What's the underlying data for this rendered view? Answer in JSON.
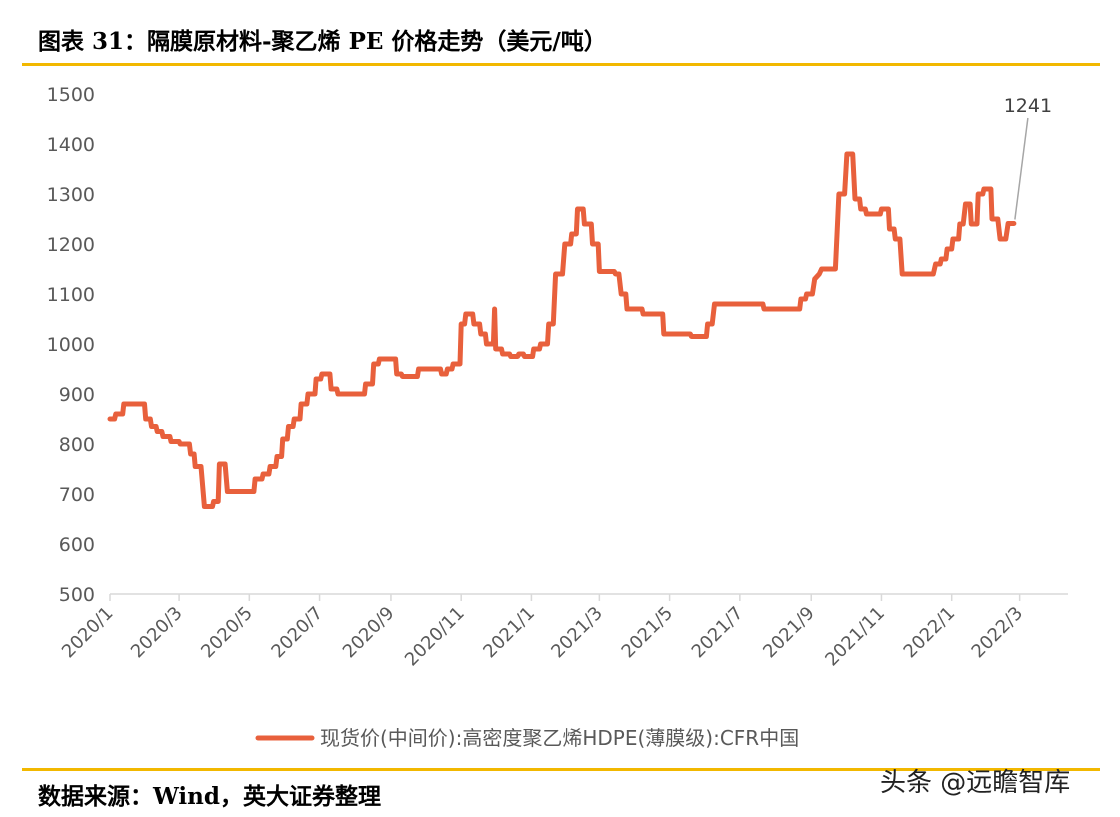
{
  "header": {
    "title": "图表 31：隔膜原材料-聚乙烯 PE 价格走势（美元/吨）"
  },
  "footer": {
    "source": "数据来源：Wind，英大证券整理",
    "watermark": "头条 @远瞻智库"
  },
  "chart_data": {
    "type": "line",
    "title": "",
    "xlabel": "",
    "ylabel": "",
    "ylim": [
      500,
      1500
    ],
    "yticks": [
      500,
      600,
      700,
      800,
      900,
      1000,
      1100,
      1200,
      1300,
      1400,
      1500
    ],
    "xlim": [
      "2020-01-01",
      "2022-04-12"
    ],
    "xticks": [
      "2020/1",
      "2020/3",
      "2020/5",
      "2020/7",
      "2020/9",
      "2020/11",
      "2021/1",
      "2021/3",
      "2021/5",
      "2021/7",
      "2021/9",
      "2021/11",
      "2022/1",
      "2022/3"
    ],
    "xtick_dates": [
      "2020-01-01",
      "2020-03-01",
      "2020-05-01",
      "2020-07-01",
      "2020-09-01",
      "2020-11-01",
      "2021-01-01",
      "2021-03-01",
      "2021-05-01",
      "2021-07-01",
      "2021-09-01",
      "2021-11-01",
      "2022-01-01",
      "2022-03-01"
    ],
    "grid": false,
    "legend_position": "bottom",
    "colors": {
      "series": "#e8603c",
      "axis": "#d9d9d9",
      "tick_text": "#595959",
      "rule": "#f2b800"
    },
    "series": [
      {
        "name": "现货价(中间价):高密度聚乙烯HDPE(薄膜级):CFR中国",
        "points": [
          [
            "2020-01-01",
            850
          ],
          [
            "2020-01-05",
            850
          ],
          [
            "2020-01-06",
            860
          ],
          [
            "2020-01-12",
            860
          ],
          [
            "2020-01-13",
            880
          ],
          [
            "2020-01-31",
            880
          ],
          [
            "2020-02-01",
            850
          ],
          [
            "2020-02-05",
            850
          ],
          [
            "2020-02-06",
            835
          ],
          [
            "2020-02-10",
            835
          ],
          [
            "2020-02-11",
            825
          ],
          [
            "2020-02-15",
            825
          ],
          [
            "2020-02-16",
            815
          ],
          [
            "2020-02-22",
            815
          ],
          [
            "2020-02-23",
            805
          ],
          [
            "2020-03-01",
            805
          ],
          [
            "2020-03-02",
            800
          ],
          [
            "2020-03-10",
            800
          ],
          [
            "2020-03-11",
            780
          ],
          [
            "2020-03-14",
            780
          ],
          [
            "2020-03-15",
            755
          ],
          [
            "2020-03-20",
            755
          ],
          [
            "2020-03-23",
            675
          ],
          [
            "2020-03-30",
            675
          ],
          [
            "2020-03-31",
            685
          ],
          [
            "2020-04-04",
            685
          ],
          [
            "2020-04-05",
            760
          ],
          [
            "2020-04-10",
            760
          ],
          [
            "2020-04-12",
            705
          ],
          [
            "2020-05-05",
            705
          ],
          [
            "2020-05-06",
            730
          ],
          [
            "2020-05-12",
            730
          ],
          [
            "2020-05-13",
            740
          ],
          [
            "2020-05-18",
            740
          ],
          [
            "2020-05-19",
            755
          ],
          [
            "2020-05-24",
            755
          ],
          [
            "2020-05-25",
            775
          ],
          [
            "2020-05-29",
            775
          ],
          [
            "2020-05-30",
            810
          ],
          [
            "2020-06-03",
            810
          ],
          [
            "2020-06-04",
            835
          ],
          [
            "2020-06-08",
            835
          ],
          [
            "2020-06-09",
            850
          ],
          [
            "2020-06-14",
            850
          ],
          [
            "2020-06-15",
            880
          ],
          [
            "2020-06-20",
            880
          ],
          [
            "2020-06-21",
            900
          ],
          [
            "2020-06-27",
            900
          ],
          [
            "2020-06-28",
            930
          ],
          [
            "2020-07-02",
            930
          ],
          [
            "2020-07-03",
            940
          ],
          [
            "2020-07-10",
            940
          ],
          [
            "2020-07-11",
            910
          ],
          [
            "2020-07-16",
            910
          ],
          [
            "2020-07-17",
            900
          ],
          [
            "2020-08-09",
            900
          ],
          [
            "2020-08-10",
            920
          ],
          [
            "2020-08-16",
            920
          ],
          [
            "2020-08-17",
            960
          ],
          [
            "2020-08-21",
            960
          ],
          [
            "2020-08-22",
            970
          ],
          [
            "2020-09-05",
            970
          ],
          [
            "2020-09-06",
            940
          ],
          [
            "2020-09-10",
            940
          ],
          [
            "2020-09-11",
            935
          ],
          [
            "2020-09-24",
            935
          ],
          [
            "2020-09-25",
            950
          ],
          [
            "2020-10-14",
            950
          ],
          [
            "2020-10-15",
            940
          ],
          [
            "2020-10-19",
            940
          ],
          [
            "2020-10-20",
            950
          ],
          [
            "2020-10-24",
            950
          ],
          [
            "2020-10-25",
            960
          ],
          [
            "2020-10-31",
            960
          ],
          [
            "2020-11-01",
            1040
          ],
          [
            "2020-11-04",
            1040
          ],
          [
            "2020-11-05",
            1060
          ],
          [
            "2020-11-11",
            1060
          ],
          [
            "2020-11-12",
            1040
          ],
          [
            "2020-11-17",
            1040
          ],
          [
            "2020-11-18",
            1020
          ],
          [
            "2020-11-22",
            1020
          ],
          [
            "2020-11-23",
            1000
          ],
          [
            "2020-11-29",
            1000
          ],
          [
            "2020-11-30",
            1070
          ],
          [
            "2020-12-01",
            990
          ],
          [
            "2020-12-06",
            990
          ],
          [
            "2020-12-07",
            980
          ],
          [
            "2020-12-13",
            980
          ],
          [
            "2020-12-14",
            975
          ],
          [
            "2020-12-20",
            975
          ],
          [
            "2020-12-21",
            980
          ],
          [
            "2020-12-25",
            980
          ],
          [
            "2020-12-26",
            975
          ],
          [
            "2021-01-02",
            975
          ],
          [
            "2021-01-03",
            990
          ],
          [
            "2021-01-08",
            990
          ],
          [
            "2021-01-09",
            1000
          ],
          [
            "2021-01-15",
            1000
          ],
          [
            "2021-01-16",
            1040
          ],
          [
            "2021-01-20",
            1040
          ],
          [
            "2021-01-22",
            1140
          ],
          [
            "2021-01-28",
            1140
          ],
          [
            "2021-01-30",
            1200
          ],
          [
            "2021-02-04",
            1200
          ],
          [
            "2021-02-05",
            1220
          ],
          [
            "2021-02-09",
            1220
          ],
          [
            "2021-02-10",
            1270
          ],
          [
            "2021-02-15",
            1270
          ],
          [
            "2021-02-16",
            1240
          ],
          [
            "2021-02-22",
            1240
          ],
          [
            "2021-02-23",
            1200
          ],
          [
            "2021-02-28",
            1200
          ],
          [
            "2021-03-01",
            1145
          ],
          [
            "2021-03-14",
            1145
          ],
          [
            "2021-03-15",
            1140
          ],
          [
            "2021-03-18",
            1140
          ],
          [
            "2021-03-20",
            1100
          ],
          [
            "2021-03-24",
            1100
          ],
          [
            "2021-03-25",
            1070
          ],
          [
            "2021-04-07",
            1070
          ],
          [
            "2021-04-08",
            1060
          ],
          [
            "2021-04-25",
            1060
          ],
          [
            "2021-04-26",
            1020
          ],
          [
            "2021-05-19",
            1020
          ],
          [
            "2021-05-20",
            1015
          ],
          [
            "2021-06-02",
            1015
          ],
          [
            "2021-06-03",
            1040
          ],
          [
            "2021-06-07",
            1040
          ],
          [
            "2021-06-09",
            1080
          ],
          [
            "2021-07-21",
            1080
          ],
          [
            "2021-07-22",
            1070
          ],
          [
            "2021-08-22",
            1070
          ],
          [
            "2021-08-23",
            1090
          ],
          [
            "2021-08-27",
            1090
          ],
          [
            "2021-08-28",
            1100
          ],
          [
            "2021-09-02",
            1100
          ],
          [
            "2021-09-04",
            1130
          ],
          [
            "2021-09-08",
            1140
          ],
          [
            "2021-09-10",
            1150
          ],
          [
            "2021-09-22",
            1150
          ],
          [
            "2021-09-25",
            1300
          ],
          [
            "2021-09-30",
            1300
          ],
          [
            "2021-10-02",
            1380
          ],
          [
            "2021-10-07",
            1380
          ],
          [
            "2021-10-09",
            1290
          ],
          [
            "2021-10-13",
            1290
          ],
          [
            "2021-10-14",
            1270
          ],
          [
            "2021-10-18",
            1270
          ],
          [
            "2021-10-19",
            1260
          ],
          [
            "2021-10-31",
            1260
          ],
          [
            "2021-11-01",
            1270
          ],
          [
            "2021-11-07",
            1270
          ],
          [
            "2021-11-08",
            1230
          ],
          [
            "2021-11-12",
            1230
          ],
          [
            "2021-11-13",
            1210
          ],
          [
            "2021-11-17",
            1210
          ],
          [
            "2021-11-19",
            1140
          ],
          [
            "2021-12-16",
            1140
          ],
          [
            "2021-12-18",
            1160
          ],
          [
            "2021-12-22",
            1160
          ],
          [
            "2021-12-23",
            1170
          ],
          [
            "2021-12-27",
            1170
          ],
          [
            "2021-12-28",
            1190
          ],
          [
            "2022-01-01",
            1190
          ],
          [
            "2022-01-02",
            1210
          ],
          [
            "2022-01-07",
            1210
          ],
          [
            "2022-01-08",
            1240
          ],
          [
            "2022-01-11",
            1240
          ],
          [
            "2022-01-13",
            1280
          ],
          [
            "2022-01-17",
            1280
          ],
          [
            "2022-01-18",
            1240
          ],
          [
            "2022-01-23",
            1240
          ],
          [
            "2022-01-24",
            1300
          ],
          [
            "2022-01-28",
            1300
          ],
          [
            "2022-01-29",
            1310
          ],
          [
            "2022-02-04",
            1310
          ],
          [
            "2022-02-05",
            1250
          ],
          [
            "2022-02-10",
            1250
          ],
          [
            "2022-02-12",
            1210
          ],
          [
            "2022-02-17",
            1210
          ],
          [
            "2022-02-19",
            1241
          ],
          [
            "2022-02-24",
            1241
          ]
        ]
      }
    ],
    "annotations": [
      {
        "text": "1241",
        "x": "2022-02-24",
        "y": 1241
      }
    ]
  }
}
